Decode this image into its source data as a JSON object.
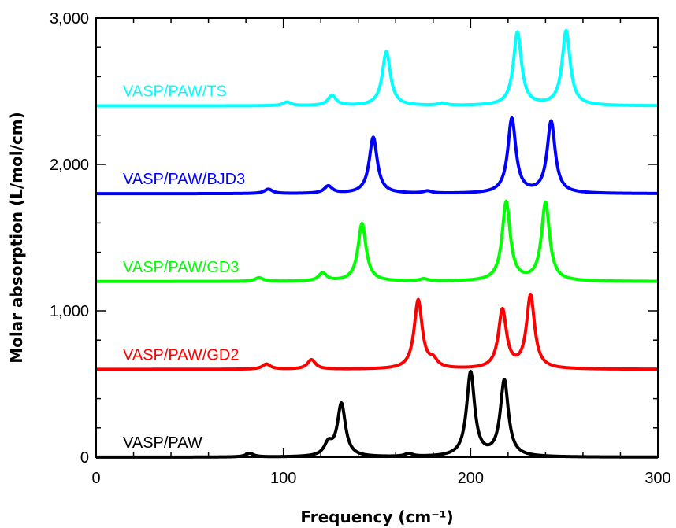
{
  "chart_data": {
    "type": "line",
    "title": "",
    "xlabel": "Frequency (cm⁻¹)",
    "ylabel": "Molar absorption (L/mol/cm)",
    "xlim": [
      0,
      300
    ],
    "ylim": [
      0,
      3000
    ],
    "xticks": [
      0,
      100,
      200,
      300
    ],
    "xtick_labels": [
      "0",
      "100",
      "200",
      "300"
    ],
    "yticks": [
      0,
      1000,
      2000,
      3000
    ],
    "ytick_labels": [
      "0",
      "1,000",
      "2,000",
      "3,000"
    ],
    "grid": false,
    "stacked_offsets": true,
    "series": [
      {
        "name": "VASP/PAW",
        "color": "#000000",
        "offset": 0,
        "peaks": [
          {
            "x": 82,
            "height": 25
          },
          {
            "x": 124,
            "height": 80
          },
          {
            "x": 131,
            "height": 360
          },
          {
            "x": 167,
            "height": 20
          },
          {
            "x": 200,
            "height": 575
          },
          {
            "x": 218,
            "height": 520
          }
        ]
      },
      {
        "name": "VASP/PAW/GD2",
        "color": "#ff0000",
        "offset": 600,
        "peaks": [
          {
            "x": 91,
            "height": 35
          },
          {
            "x": 115,
            "height": 65
          },
          {
            "x": 172,
            "height": 470
          },
          {
            "x": 180,
            "height": 50
          },
          {
            "x": 217,
            "height": 400
          },
          {
            "x": 232,
            "height": 500
          }
        ]
      },
      {
        "name": "VASP/PAW/GD3",
        "color": "#00ff00",
        "offset": 1200,
        "peaks": [
          {
            "x": 87,
            "height": 25
          },
          {
            "x": 121,
            "height": 55
          },
          {
            "x": 142,
            "height": 395
          },
          {
            "x": 175,
            "height": 15
          },
          {
            "x": 219,
            "height": 540
          },
          {
            "x": 240,
            "height": 535
          }
        ]
      },
      {
        "name": "VASP/PAW/BJD3",
        "color": "#0000ff",
        "offset": 1800,
        "peaks": [
          {
            "x": 92,
            "height": 30
          },
          {
            "x": 124,
            "height": 50
          },
          {
            "x": 148,
            "height": 385
          },
          {
            "x": 177,
            "height": 15
          },
          {
            "x": 222,
            "height": 510
          },
          {
            "x": 243,
            "height": 490
          }
        ]
      },
      {
        "name": "VASP/PAW/TS",
        "color": "#00ffff",
        "offset": 2400,
        "peaks": [
          {
            "x": 102,
            "height": 25
          },
          {
            "x": 126,
            "height": 70
          },
          {
            "x": 155,
            "height": 370
          },
          {
            "x": 185,
            "height": 15
          },
          {
            "x": 225,
            "height": 500
          },
          {
            "x": 251,
            "height": 510
          }
        ]
      }
    ]
  }
}
